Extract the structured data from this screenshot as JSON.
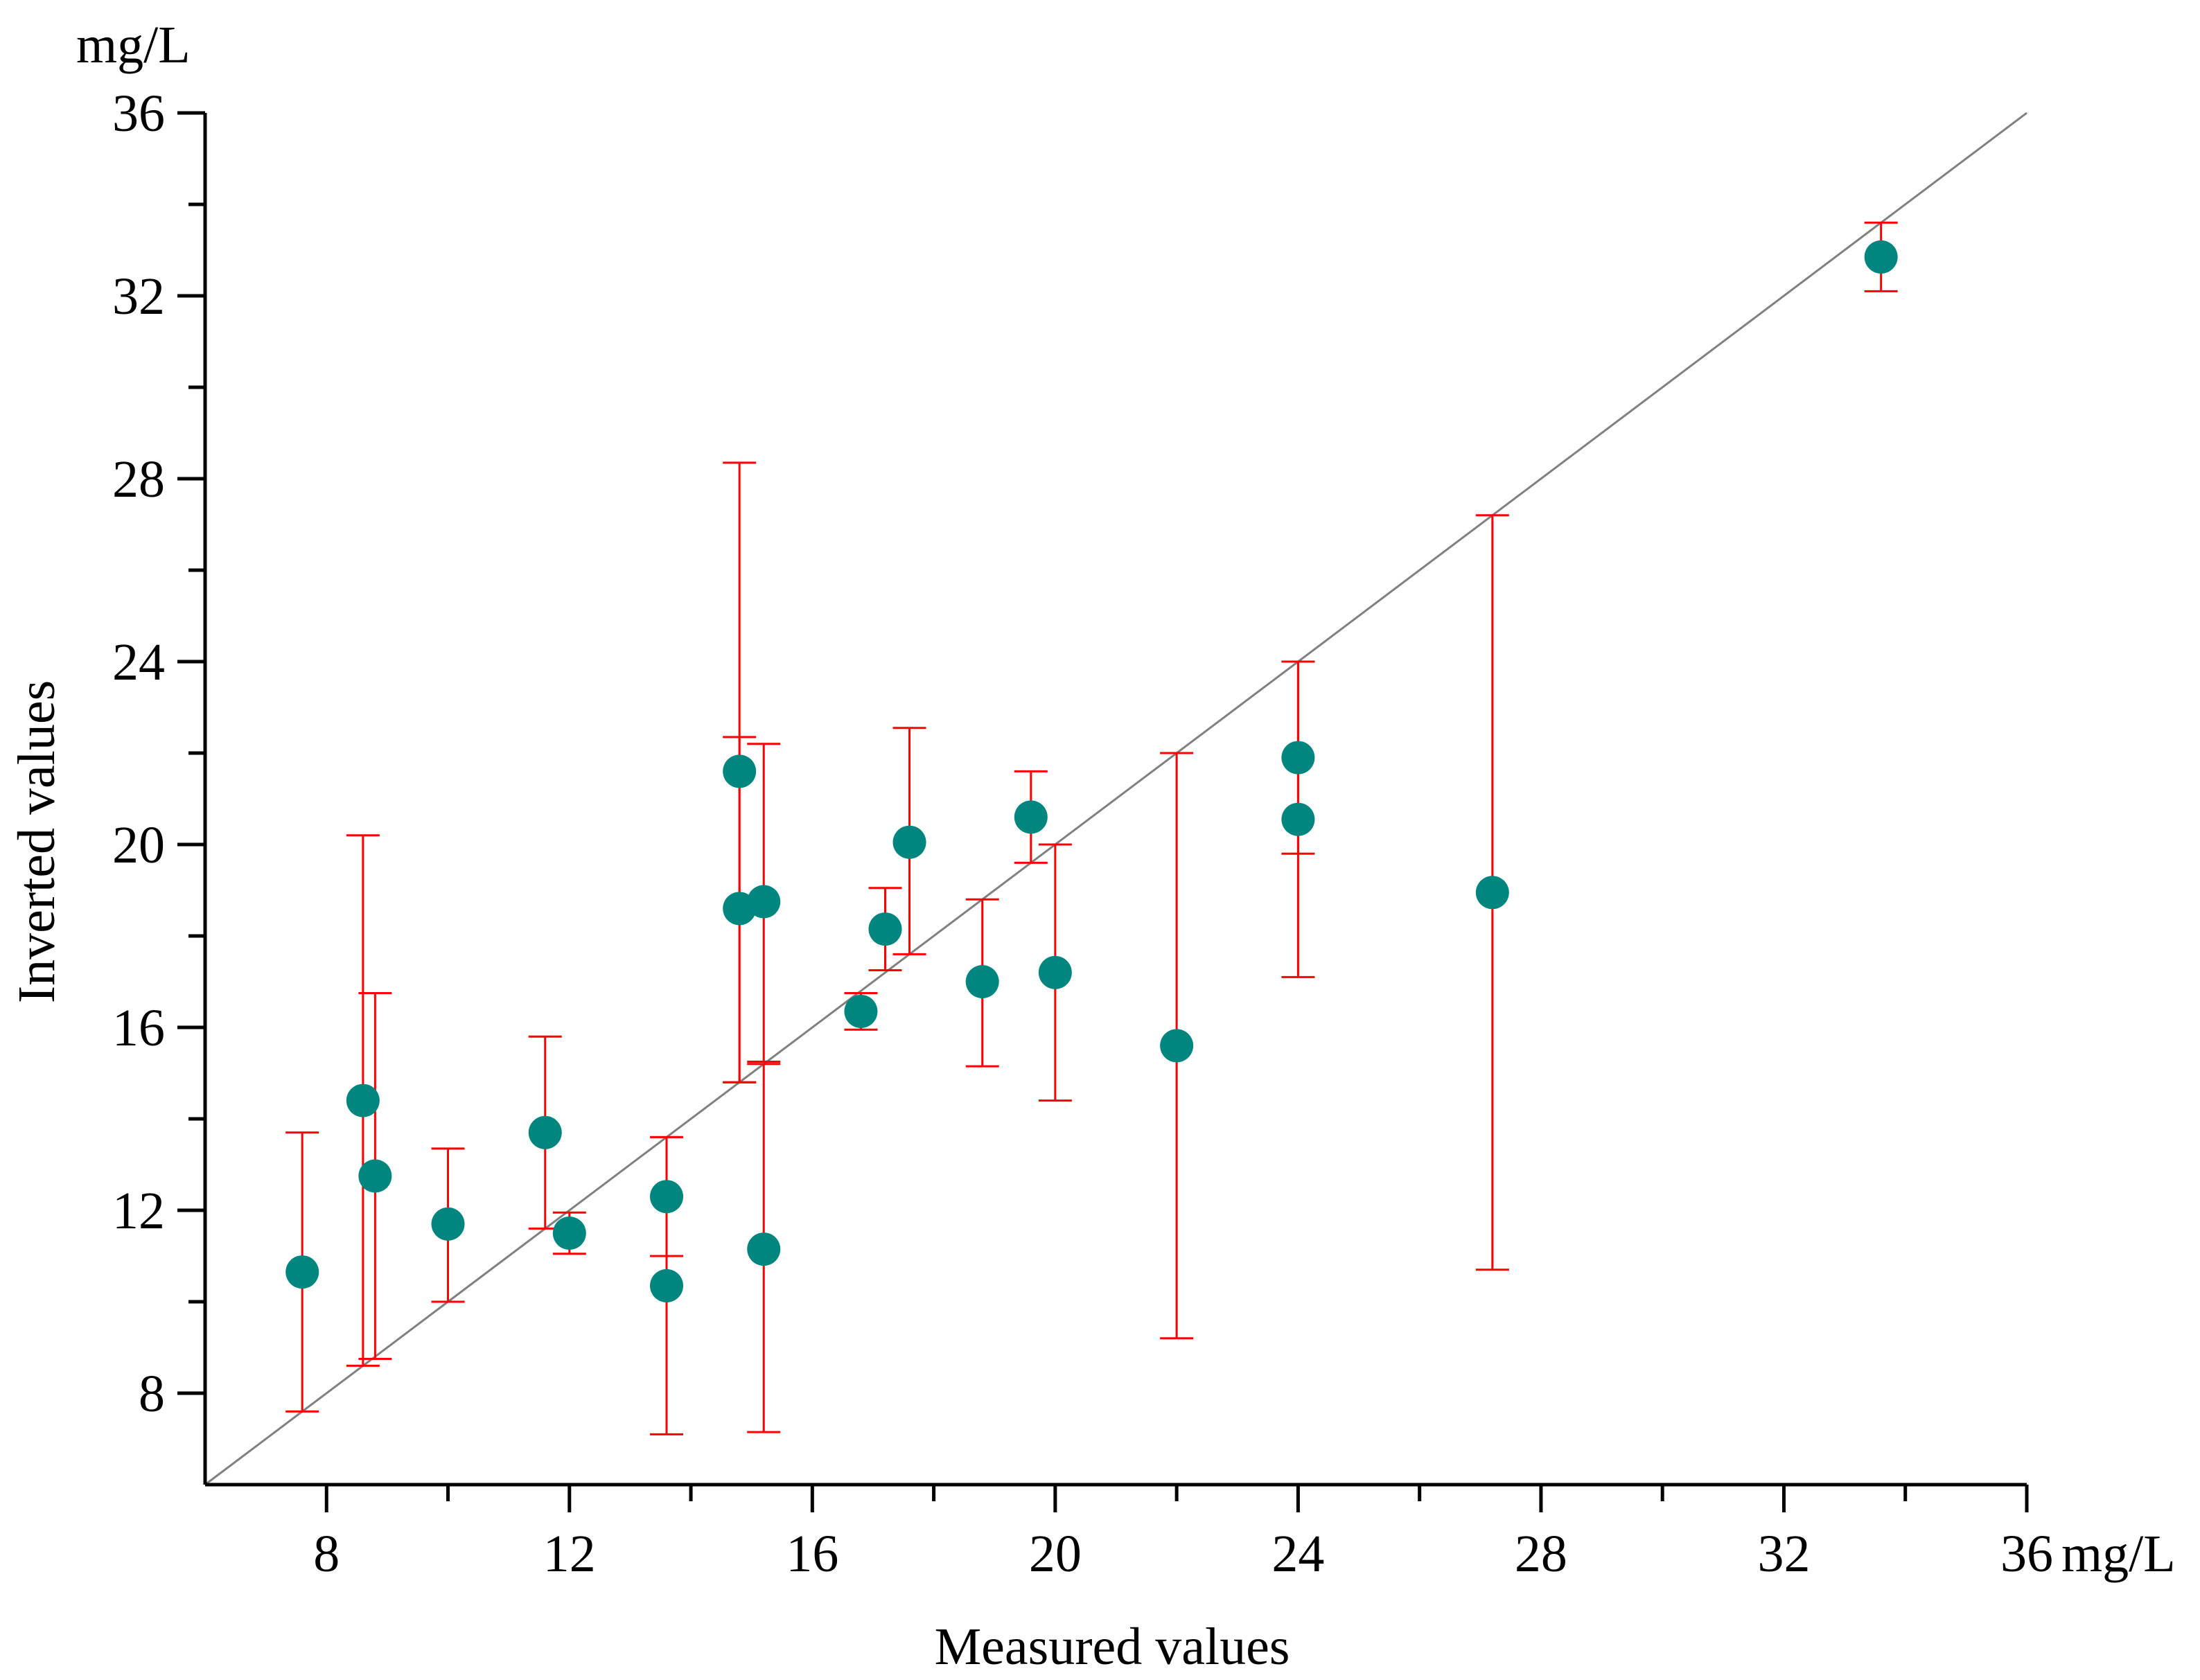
{
  "chart_data": {
    "type": "scatter",
    "title": "",
    "xlabel": "Measured values",
    "ylabel": "Inverted values",
    "x_unit": "mg/L",
    "y_unit": "mg/L",
    "xlim": [
      6,
      36
    ],
    "ylim": [
      6,
      36
    ],
    "xticks": [
      8,
      12,
      16,
      20,
      24,
      28,
      32,
      36
    ],
    "yticks": [
      8,
      12,
      16,
      20,
      24,
      28,
      32,
      36
    ],
    "x_minor_step": 2,
    "y_minor_step": 2,
    "grid": false,
    "legend": "none",
    "reference_line": {
      "name": "1:1 line",
      "from": [
        6,
        6
      ],
      "to": [
        36,
        36
      ],
      "color": "#808080"
    },
    "marker_color": "#00867F",
    "errorbar_color": "#FF0000",
    "points": [
      {
        "x": 7.6,
        "y": 10.65,
        "err_low": 7.6,
        "err_high": 13.7
      },
      {
        "x": 8.6,
        "y": 14.4,
        "err_low": 8.6,
        "err_high": 20.2
      },
      {
        "x": 8.8,
        "y": 12.75,
        "err_low": 8.75,
        "err_high": 16.75
      },
      {
        "x": 10.0,
        "y": 11.7,
        "err_low": 10.0,
        "err_high": 13.35
      },
      {
        "x": 11.6,
        "y": 13.7,
        "err_low": 11.6,
        "err_high": 15.8
      },
      {
        "x": 12.0,
        "y": 11.5,
        "err_low": 11.05,
        "err_high": 11.95
      },
      {
        "x": 13.6,
        "y": 12.3,
        "err_low": 11.0,
        "err_high": 13.6
      },
      {
        "x": 13.6,
        "y": 10.35,
        "err_low": 7.1,
        "err_high": 13.6
      },
      {
        "x": 14.8,
        "y": 21.6,
        "err_low": 14.8,
        "err_high": 28.35
      },
      {
        "x": 14.8,
        "y": 18.6,
        "err_low": 14.8,
        "err_high": 22.35
      },
      {
        "x": 15.2,
        "y": 18.75,
        "err_low": 15.25,
        "err_high": 22.2
      },
      {
        "x": 15.2,
        "y": 11.15,
        "err_low": 7.15,
        "err_high": 15.2
      },
      {
        "x": 16.8,
        "y": 16.35,
        "err_low": 15.95,
        "err_high": 16.75
      },
      {
        "x": 17.2,
        "y": 18.15,
        "err_low": 17.25,
        "err_high": 19.05
      },
      {
        "x": 17.6,
        "y": 20.05,
        "err_low": 17.6,
        "err_high": 22.55
      },
      {
        "x": 18.8,
        "y": 17.0,
        "err_low": 15.15,
        "err_high": 18.8
      },
      {
        "x": 19.6,
        "y": 20.6,
        "err_low": 19.6,
        "err_high": 21.6
      },
      {
        "x": 20.0,
        "y": 17.2,
        "err_low": 14.4,
        "err_high": 20.0
      },
      {
        "x": 22.0,
        "y": 15.6,
        "err_low": 9.2,
        "err_high": 22.0
      },
      {
        "x": 24.0,
        "y": 21.9,
        "err_low": 19.8,
        "err_high": 24.0
      },
      {
        "x": 24.0,
        "y": 20.55,
        "err_low": 17.1,
        "err_high": 24.0
      },
      {
        "x": 27.2,
        "y": 18.95,
        "err_low": 10.7,
        "err_high": 27.2
      },
      {
        "x": 33.6,
        "y": 32.85,
        "err_low": 32.1,
        "err_high": 33.6
      }
    ]
  }
}
